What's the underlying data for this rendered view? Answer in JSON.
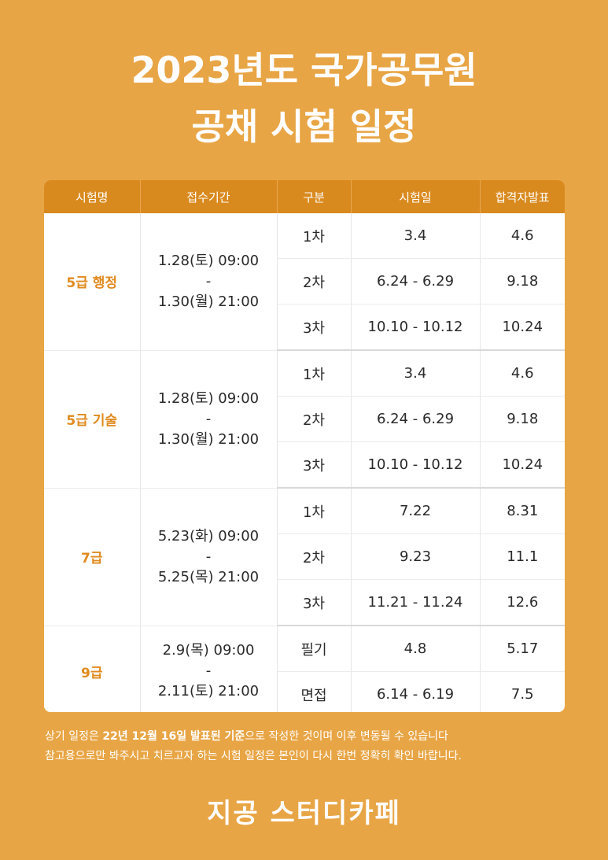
{
  "title": {
    "line1": "2023년도 국가공무원",
    "line2": "공채 시험 일정"
  },
  "table": {
    "headers": [
      "시험명",
      "접수기간",
      "구분",
      "시험일",
      "합격자발표"
    ],
    "groups": [
      {
        "name": "5급 행정",
        "period": {
          "start": "1.28(토) 09:00",
          "sep": "-",
          "end": "1.30(월) 21:00"
        },
        "rows": [
          {
            "stage": "1차",
            "exam": "3.4",
            "result": "4.6"
          },
          {
            "stage": "2차",
            "exam": "6.24 - 6.29",
            "result": "9.18"
          },
          {
            "stage": "3차",
            "exam": "10.10 - 10.12",
            "result": "10.24"
          }
        ]
      },
      {
        "name": "5급 기술",
        "period": {
          "start": "1.28(토) 09:00",
          "sep": "-",
          "end": "1.30(월) 21:00"
        },
        "rows": [
          {
            "stage": "1차",
            "exam": "3.4",
            "result": "4.6"
          },
          {
            "stage": "2차",
            "exam": "6.24 - 6.29",
            "result": "9.18"
          },
          {
            "stage": "3차",
            "exam": "10.10 - 10.12",
            "result": "10.24"
          }
        ]
      },
      {
        "name": "7급",
        "period": {
          "start": "5.23(화) 09:00",
          "sep": "-",
          "end": "5.25(목) 21:00"
        },
        "rows": [
          {
            "stage": "1차",
            "exam": "7.22",
            "result": "8.31"
          },
          {
            "stage": "2차",
            "exam": "9.23",
            "result": "11.1"
          },
          {
            "stage": "3차",
            "exam": "11.21 - 11.24",
            "result": "12.6"
          }
        ]
      },
      {
        "name": "9급",
        "period": {
          "start": "2.9(목) 09:00",
          "sep": "-",
          "end": "2.11(토) 21:00"
        },
        "rows": [
          {
            "stage": "필기",
            "exam": "4.8",
            "result": "5.17"
          },
          {
            "stage": "면접",
            "exam": "6.14 - 6.19",
            "result": "7.5"
          }
        ]
      }
    ]
  },
  "notes": {
    "line1_a": "상기 일정은 ",
    "line1_b": "22년 12월 16일 발표된 기준",
    "line1_c": "으로 작성한 것이며 이후 변동될 수 있습니다",
    "line2": "참고용으로만 봐주시고 치르고자 하는 시험 일정은 본인이 다시 한번 정확히 확인 바랍니다."
  },
  "brand": "지공 스터디카페",
  "colors": {
    "background": "#e8a545",
    "header": "#d98a1f",
    "accent": "#e08a1e"
  }
}
